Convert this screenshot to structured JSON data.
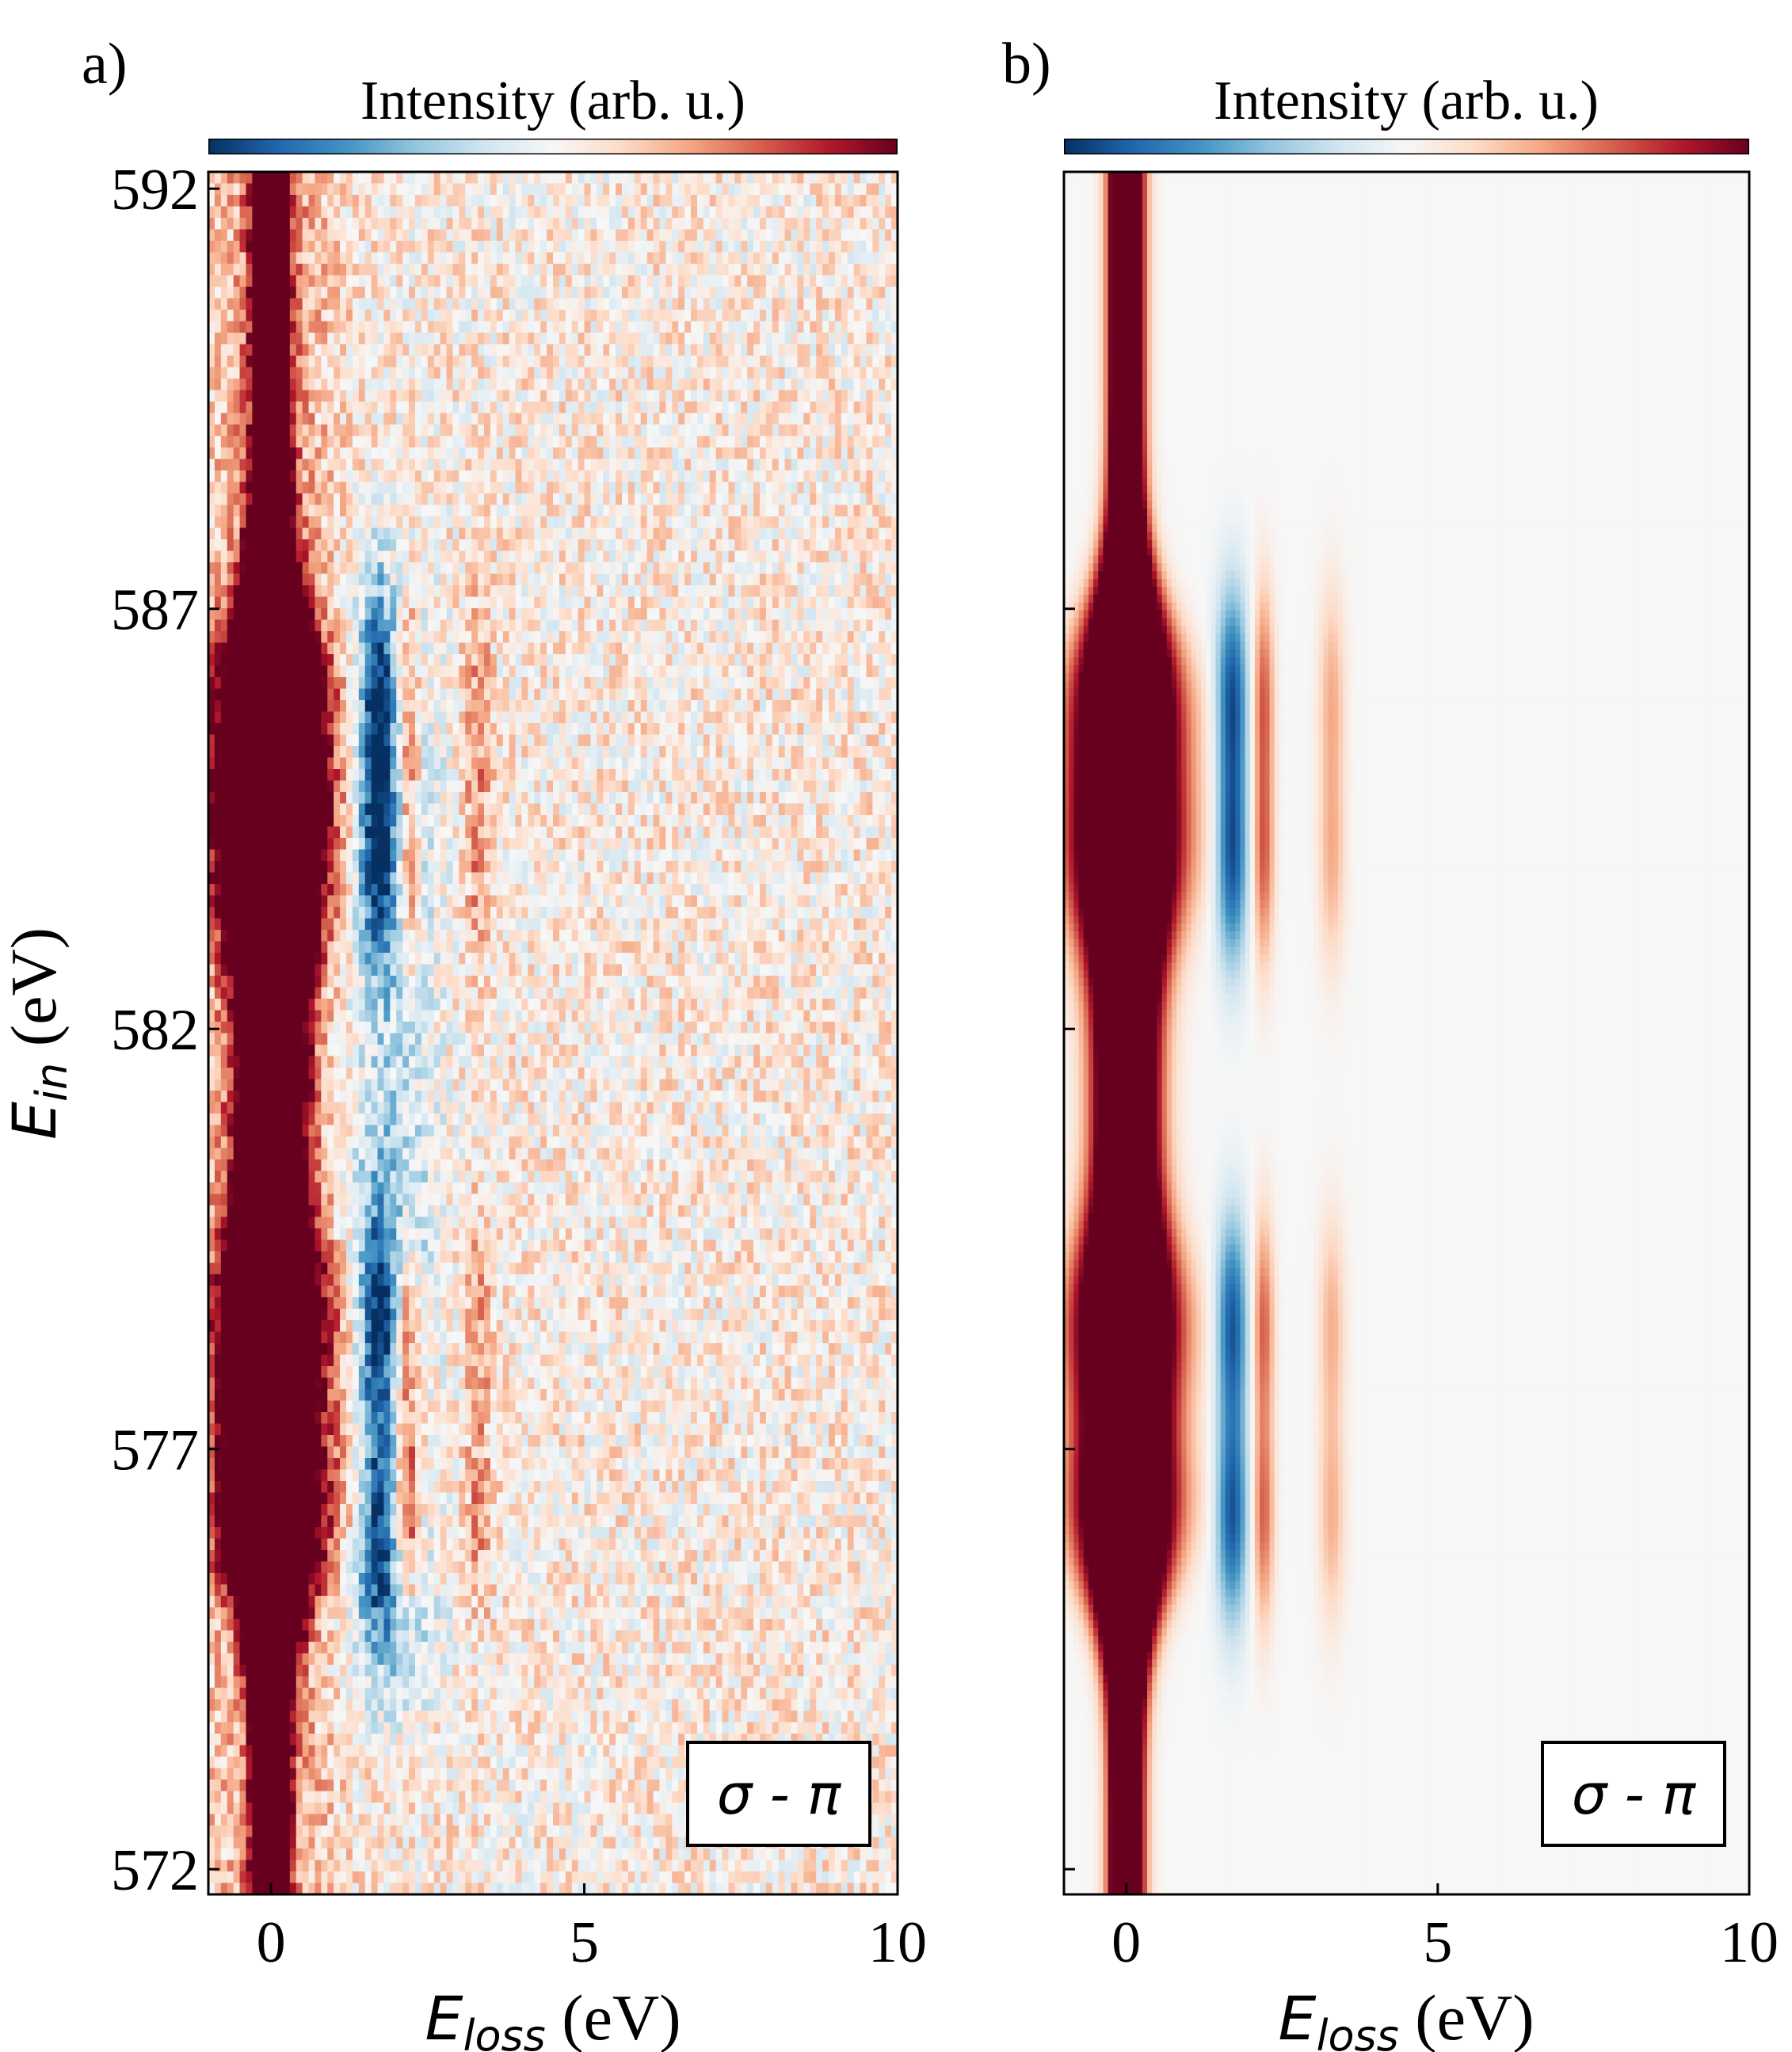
{
  "chart_data": [
    {
      "type": "heatmap",
      "panel_label": "a)",
      "colorbar_label": "Intensity (arb. u.)",
      "colormap": "RdBu_r",
      "colormap_colors": [
        "#053061",
        "#2166ac",
        "#4393c3",
        "#92c5de",
        "#d1e5f0",
        "#f7f7f7",
        "#fddbc7",
        "#f4a582",
        "#d6604d",
        "#b2182b",
        "#67001f"
      ],
      "xlabel_main": "E",
      "xlabel_sub": "loss",
      "xlabel_unit": " (eV)",
      "ylabel_main": "E",
      "ylabel_sub": "in",
      "ylabel_unit": " (eV)",
      "xlim": [
        -1,
        10
      ],
      "ylim": [
        571.7,
        592.2
      ],
      "xticks": [
        0,
        5,
        10
      ],
      "xtick_labels": [
        "0",
        "5",
        "10"
      ],
      "yticks": [
        572,
        577,
        582,
        587,
        592
      ],
      "ytick_labels": [
        "572",
        "577",
        "582",
        "587",
        "592"
      ],
      "annotation": "σ - π",
      "data_kind": "measured",
      "elastic_line_eloss": 0,
      "dd_features_eloss": [
        1.7,
        2.2,
        3.3
      ],
      "resonance_ein": [
        586.0,
        584.0,
        578.5,
        576.2
      ]
    },
    {
      "type": "heatmap",
      "panel_label": "b)",
      "colorbar_label": "Intensity (arb. u.)",
      "colormap": "RdBu_r",
      "colormap_colors": [
        "#053061",
        "#2166ac",
        "#4393c3",
        "#92c5de",
        "#d1e5f0",
        "#f7f7f7",
        "#fddbc7",
        "#f4a582",
        "#d6604d",
        "#b2182b",
        "#67001f"
      ],
      "xlabel_main": "E",
      "xlabel_sub": "loss",
      "xlabel_unit": " (eV)",
      "xlim": [
        -1,
        10
      ],
      "ylim": [
        571.7,
        592.2
      ],
      "xticks": [
        0,
        5,
        10
      ],
      "xtick_labels": [
        "0",
        "5",
        "10"
      ],
      "yticks": [
        572,
        577,
        582,
        587
      ],
      "annotation": "σ - π",
      "data_kind": "calculated",
      "elastic_line_eloss": 0,
      "dd_features_eloss": [
        1.7,
        2.2,
        3.3
      ],
      "resonance_ein": [
        586.0,
        584.0,
        578.5,
        576.2
      ]
    }
  ]
}
